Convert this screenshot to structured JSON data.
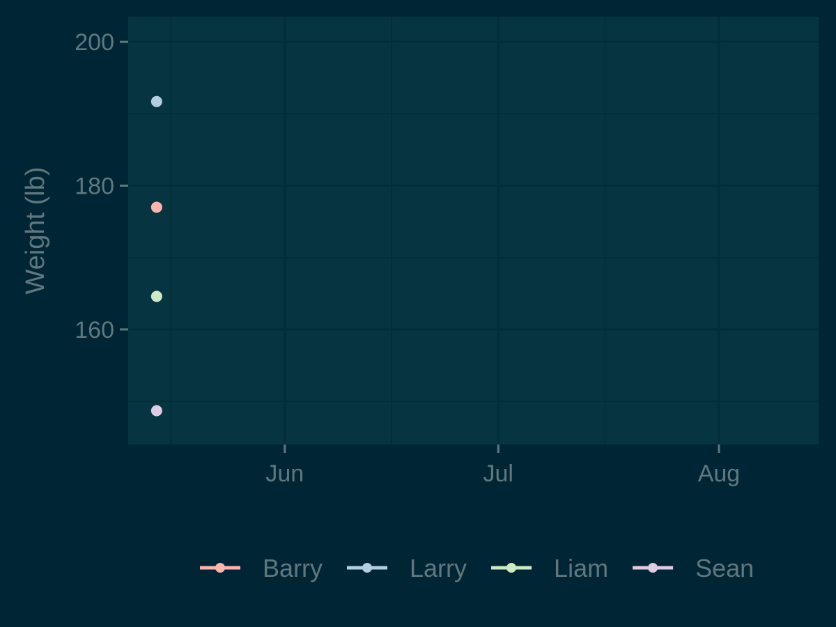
{
  "chart_data": {
    "type": "line",
    "title": "",
    "xlabel": "",
    "ylabel": "Weight (lb)",
    "x_ticks": [
      "Jun",
      "Jul",
      "Aug"
    ],
    "y_ticks": [
      "160",
      "180",
      "200"
    ],
    "ylim": [
      144,
      203.5
    ],
    "xlim": [
      "2023-05-10",
      "2023-08-15"
    ],
    "grid": true,
    "legend_position": "bottom",
    "colors": {
      "background": "#002635",
      "panel": "#073441",
      "grid": "#022d3b",
      "text": "#60777f"
    },
    "series": [
      {
        "name": "Barry",
        "color": "#fbb4ae",
        "points": [
          {
            "x": "2023-05-14",
            "y": 177
          }
        ]
      },
      {
        "name": "Larry",
        "color": "#b3cde3",
        "points": [
          {
            "x": "2023-05-14",
            "y": 191.7
          }
        ]
      },
      {
        "name": "Liam",
        "color": "#ccebc5",
        "points": [
          {
            "x": "2023-05-14",
            "y": 164.6
          }
        ]
      },
      {
        "name": "Sean",
        "color": "#decbe4",
        "points": [
          {
            "x": "2023-05-14",
            "y": 148.7
          }
        ]
      }
    ]
  }
}
